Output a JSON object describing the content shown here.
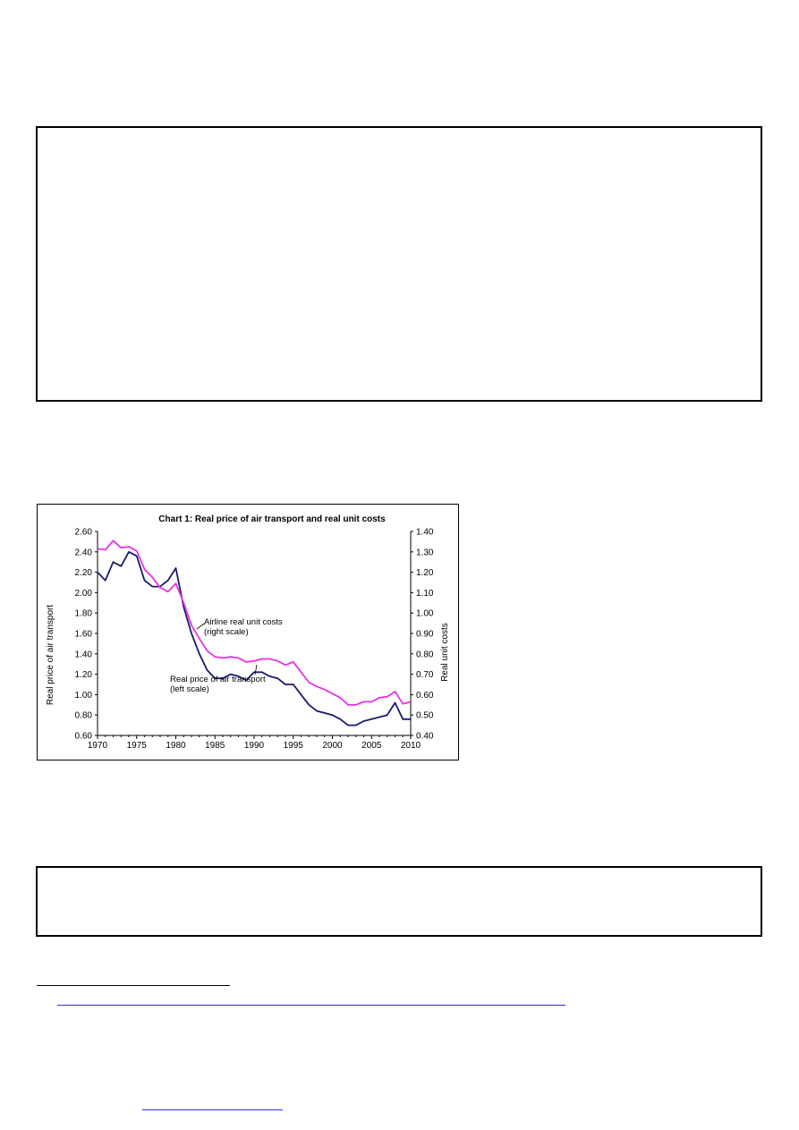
{
  "chart_data": {
    "type": "line",
    "title": "Chart 1: Real price of air transport and real unit costs",
    "y_left_label": "Real price of air transport",
    "y_right_label": "Real unit costs",
    "y_left_range": [
      0.6,
      2.6
    ],
    "y_right_range": [
      0.4,
      1.4
    ],
    "y_left_ticks": [
      "0.60",
      "0.80",
      "1.00",
      "1.20",
      "1.40",
      "1.60",
      "1.80",
      "2.00",
      "2.20",
      "2.40",
      "2.60"
    ],
    "y_right_ticks": [
      "0.40",
      "0.50",
      "0.60",
      "0.70",
      "0.80",
      "0.90",
      "1.00",
      "1.10",
      "1.20",
      "1.30",
      "1.40"
    ],
    "x_range": [
      1970,
      2010
    ],
    "x_ticks": [
      "1970",
      "1975",
      "1980",
      "1985",
      "1990",
      "1995",
      "2000",
      "2005",
      "2010"
    ],
    "grid": false,
    "x": [
      1970,
      1971,
      1972,
      1973,
      1974,
      1975,
      1976,
      1977,
      1978,
      1979,
      1980,
      1981,
      1982,
      1983,
      1984,
      1985,
      1986,
      1987,
      1988,
      1989,
      1990,
      1991,
      1992,
      1993,
      1994,
      1995,
      1996,
      1997,
      1998,
      1999,
      2000,
      2001,
      2002,
      2003,
      2004,
      2005,
      2006,
      2007,
      2008,
      2009,
      2010
    ],
    "series": [
      {
        "name": "Airline real unit costs",
        "axis": "right",
        "color": "#1a1a6e",
        "values": [
          1.2,
          1.16,
          1.25,
          1.23,
          1.3,
          1.28,
          1.16,
          1.13,
          1.13,
          1.16,
          1.22,
          1.03,
          0.9,
          0.8,
          0.72,
          0.68,
          0.68,
          0.7,
          0.69,
          0.67,
          0.71,
          0.71,
          0.69,
          0.68,
          0.65,
          0.65,
          0.6,
          0.55,
          0.52,
          0.51,
          0.5,
          0.48,
          0.45,
          0.45,
          0.47,
          0.48,
          0.49,
          0.5,
          0.56,
          0.48,
          0.48
        ]
      },
      {
        "name": "Real price of air transport",
        "axis": "left",
        "color": "#e633e6",
        "values": [
          2.43,
          2.42,
          2.51,
          2.44,
          2.45,
          2.41,
          2.23,
          2.15,
          2.05,
          2.01,
          2.09,
          1.9,
          1.68,
          1.55,
          1.43,
          1.37,
          1.36,
          1.37,
          1.36,
          1.32,
          1.33,
          1.35,
          1.35,
          1.33,
          1.29,
          1.32,
          1.22,
          1.12,
          1.08,
          1.05,
          1.01,
          0.97,
          0.9,
          0.9,
          0.93,
          0.93,
          0.97,
          0.98,
          1.03,
          0.91,
          0.93
        ]
      }
    ],
    "annotations": [
      {
        "lines": [
          "Airline real unit costs",
          "(right scale)"
        ],
        "points_to": "Airline real unit costs"
      },
      {
        "lines": [
          "Real price of air transport",
          "(left scale)"
        ],
        "points_to": "Real price of air transport"
      }
    ]
  }
}
